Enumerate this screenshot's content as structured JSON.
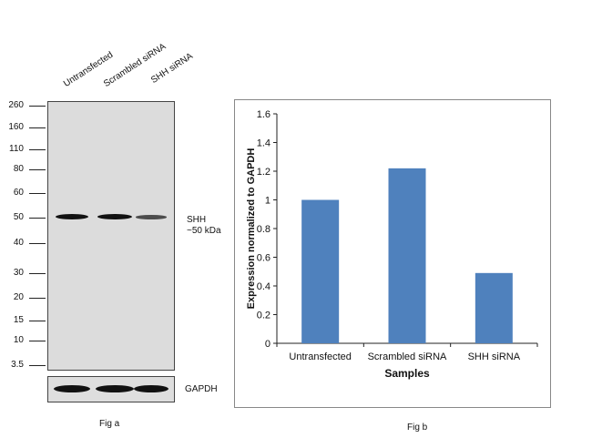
{
  "fig_a": {
    "lanes": [
      "Untransfected",
      "Scrambled siRNA",
      "SHH  siRNA"
    ],
    "markers": [
      "260",
      "160",
      "110",
      "80",
      "60",
      "50",
      "40",
      "30",
      "20",
      "15",
      "10",
      "3.5"
    ],
    "band_label_line1": "SHH",
    "band_label_line2": "~50 kDa",
    "gapdh_label": "GAPDH",
    "caption": "Fig a",
    "shh_band_intensity": [
      1.0,
      1.0,
      0.55
    ],
    "gapdh_band_intensity": [
      1.0,
      1.0,
      1.0
    ]
  },
  "fig_b": {
    "caption": "Fig b"
  },
  "chart_data": {
    "type": "bar",
    "categories": [
      "Untransfected",
      "Scrambled siRNA",
      "SHH siRNA"
    ],
    "values": [
      1.0,
      1.22,
      0.49
    ],
    "ylabel": "Expression normalized to GAPDH",
    "xlabel": "Samples",
    "ylim": [
      0,
      1.6
    ],
    "yticks": [
      "0",
      "0.2",
      "0.4",
      "0.6",
      "0.8",
      "1",
      "1.2",
      "1.4",
      "1.6"
    ],
    "bar_color": "#4f81bd",
    "grid": false
  }
}
